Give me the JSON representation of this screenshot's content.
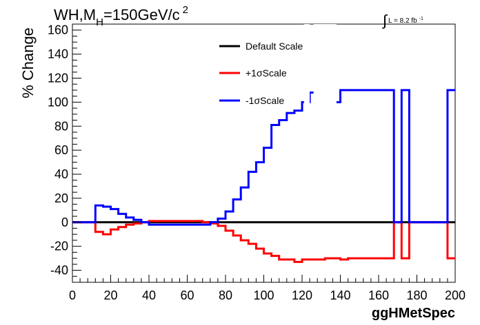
{
  "chart_data": {
    "type": "line",
    "title_parts": {
      "main": "WH,M",
      "sub": "H",
      "rest": "=150GeV/c",
      "sup": "2"
    },
    "lumi_parts": {
      "integral": "∫",
      "text": "L = 8.2 fb",
      "sup": "-1"
    },
    "xlabel": "ggHMetSpec",
    "ylabel": "% Change",
    "xlim": [
      0,
      200
    ],
    "ylim": [
      -50,
      165
    ],
    "xticks": [
      0,
      20,
      40,
      60,
      80,
      100,
      120,
      140,
      160,
      180,
      200
    ],
    "yticks": [
      -40,
      -20,
      0,
      20,
      40,
      60,
      80,
      100,
      120,
      140,
      160
    ],
    "x_edges": [
      0,
      4,
      8,
      12,
      16,
      20,
      24,
      28,
      32,
      36,
      40,
      44,
      48,
      52,
      56,
      60,
      64,
      68,
      72,
      76,
      80,
      84,
      88,
      92,
      96,
      100,
      104,
      108,
      112,
      116,
      120,
      124,
      128,
      132,
      136,
      140,
      144,
      148,
      152,
      156,
      160,
      164,
      168,
      172,
      176,
      180,
      184,
      188,
      192,
      196,
      200
    ],
    "series": [
      {
        "name": "Default Scale",
        "color": "#000000",
        "values": [
          0,
          0,
          0,
          0,
          0,
          0,
          0,
          0,
          0,
          0,
          0,
          0,
          0,
          0,
          0,
          0,
          0,
          0,
          0,
          0,
          0,
          0,
          0,
          0,
          0,
          0,
          0,
          0,
          0,
          0,
          0,
          0,
          0,
          0,
          0,
          0,
          0,
          0,
          0,
          0,
          0,
          0,
          0,
          0,
          0,
          0,
          0,
          0,
          0,
          0
        ]
      },
      {
        "name": "+1σScale",
        "color": "#ff0000",
        "values": [
          0,
          0,
          0,
          -8,
          -10,
          -6,
          -4,
          -2,
          -1,
          0,
          1,
          1,
          1,
          1,
          1,
          1,
          1,
          0,
          -1,
          -3,
          -7,
          -11,
          -15,
          -18,
          -22,
          -26,
          -28,
          -31,
          -31,
          -33,
          -31,
          -31,
          -31,
          -30,
          -30,
          -31,
          -30,
          -30,
          -30,
          -30,
          -30,
          -30,
          0,
          -30,
          0,
          0,
          0,
          0,
          0,
          -30
        ]
      },
      {
        "name": "-1σScale",
        "color": "#0000ff",
        "values": [
          0,
          0,
          0,
          14,
          13,
          11,
          7,
          4,
          2,
          0,
          -2,
          -2,
          -2,
          -2,
          -2,
          -2,
          -2,
          -2,
          0,
          3,
          9,
          19,
          29,
          42,
          50,
          62,
          81,
          85,
          91,
          93,
          100,
          108,
          109,
          110,
          100,
          110,
          110,
          110,
          110,
          110,
          110,
          110,
          0,
          110,
          0,
          0,
          0,
          0,
          0,
          110
        ],
        "gaps": [
          [
            121,
            124
          ],
          [
            126,
            138
          ]
        ]
      }
    ],
    "legend": {
      "position": "top-center",
      "entries": [
        "Default Scale",
        "+1σScale",
        "-1σScale"
      ]
    },
    "grid": false
  }
}
